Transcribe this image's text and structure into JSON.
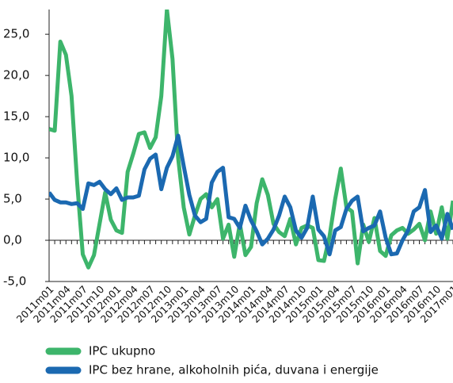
{
  "chart_data": {
    "type": "line",
    "categories": [
      "2011m01",
      null,
      null,
      "2011m04",
      null,
      null,
      "2011m07",
      null,
      null,
      "2011m10",
      null,
      null,
      "2012m01",
      null,
      null,
      "2012m04",
      null,
      null,
      "2012m07",
      null,
      null,
      "2012m10",
      null,
      null,
      "2013m01",
      null,
      null,
      "2013m04",
      null,
      null,
      "2013m07",
      null,
      null,
      "2013m10",
      null,
      null,
      "2014m01",
      null,
      null,
      "2014m04",
      null,
      null,
      "2014m07",
      null,
      null,
      "2014m10",
      null,
      null,
      "2015m01",
      null,
      null,
      "2015m04",
      null,
      null,
      "2015m07",
      null,
      null,
      "2015m10",
      null,
      null,
      "2016m01",
      null,
      null,
      "2016m04",
      null,
      null,
      "2016m07",
      null,
      null,
      "2016m10",
      null,
      null,
      "2017m01"
    ],
    "series": [
      {
        "name": "IPC ukupno",
        "color": "#3db56b",
        "values": [
          13.5,
          13.3,
          24.1,
          22.5,
          17.5,
          7,
          -1.7,
          -3.3,
          -1.8,
          2,
          5.8,
          2.5,
          1.2,
          0.9,
          8.3,
          10.5,
          12.9,
          13.1,
          11.2,
          12.5,
          17.5,
          28,
          22,
          10,
          4,
          0.7,
          3,
          5,
          5.6,
          4,
          5,
          0.2,
          1.9,
          -2,
          2,
          -1.8,
          -0.8,
          4.5,
          7.4,
          5.5,
          2,
          1,
          0.5,
          2.6,
          -0.5,
          1.5,
          1.8,
          1.5,
          -2.4,
          -2.5,
          0.5,
          5,
          8.7,
          4,
          3.5,
          -2.8,
          1.9,
          -0.2,
          2.7,
          -1.3,
          -1.9,
          0.6,
          1.2,
          1.5,
          0.8,
          1.3,
          2,
          0,
          3.5,
          0.8,
          4,
          0.2,
          4.8
        ]
      },
      {
        "name": "IPC bez hrane, alkoholnih pića, duvana i energije",
        "color": "#1b69b1",
        "values": [
          5.8,
          4.9,
          4.6,
          4.6,
          4.4,
          4.5,
          3.8,
          6.9,
          6.7,
          7.1,
          6.2,
          5.6,
          6.3,
          4.9,
          5.2,
          5.2,
          5.4,
          8.6,
          9.9,
          10.4,
          6.2,
          8.8,
          10.2,
          12.7,
          9,
          5.5,
          3,
          2.2,
          2.6,
          7,
          8.3,
          8.8,
          2.8,
          2.6,
          1.5,
          4.2,
          2.4,
          1.1,
          -0.5,
          0.2,
          1.3,
          3,
          5.3,
          4,
          1.2,
          0.3,
          1.5,
          5.3,
          1.3,
          0.5,
          -1.7,
          1.2,
          1.6,
          3.8,
          4.8,
          5.3,
          1.1,
          1.5,
          1.8,
          3.5,
          0.3,
          -1.7,
          -1.6,
          0,
          1.2,
          3.5,
          4,
          6.1,
          1,
          1.8,
          0.2,
          3.2,
          1.3
        ]
      }
    ],
    "ylim": [
      -5,
      28
    ],
    "yticks": [
      {
        "value": -5,
        "label": "-5,0"
      },
      {
        "value": 0,
        "label": "0,0"
      },
      {
        "value": 5,
        "label": "5,0"
      },
      {
        "value": 10,
        "label": "10,0"
      },
      {
        "value": 15,
        "label": "15,0"
      },
      {
        "value": 20,
        "label": "20,0"
      },
      {
        "value": 25,
        "label": "25,0"
      }
    ],
    "legend": "bottom"
  }
}
